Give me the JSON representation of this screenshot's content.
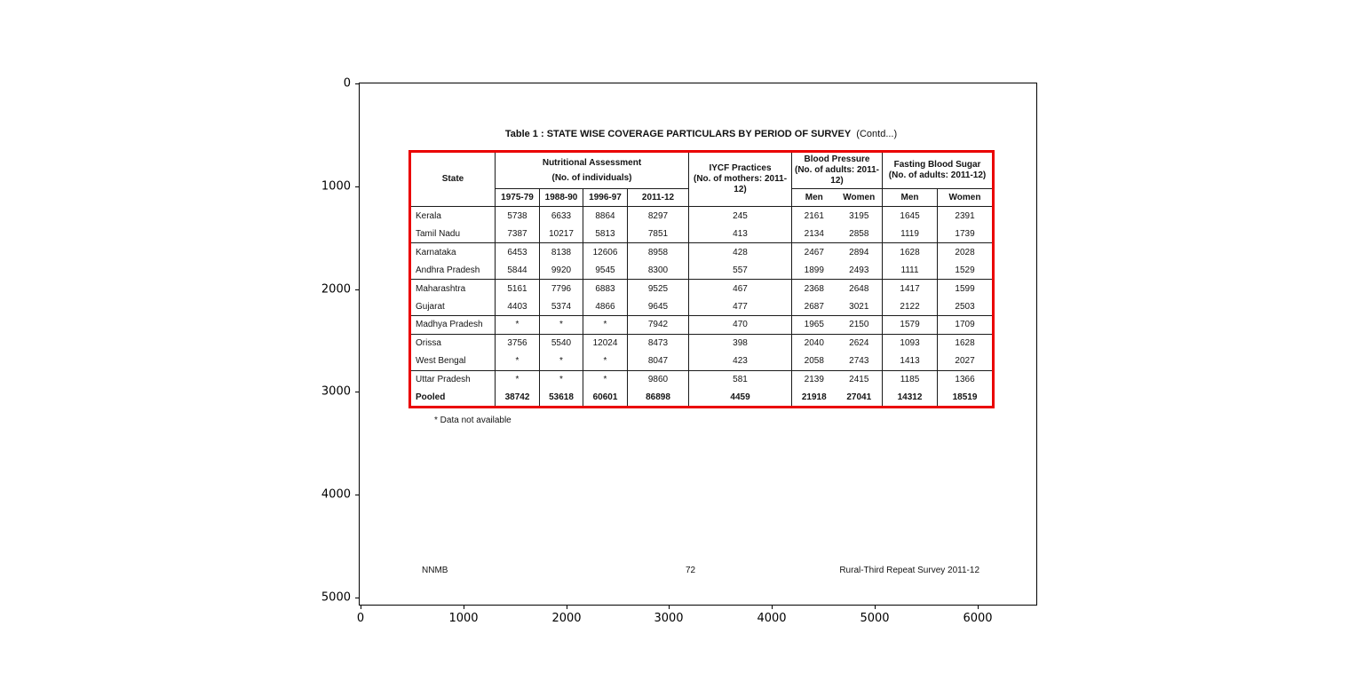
{
  "figure": {
    "y_ticks": [
      "0",
      "1000",
      "2000",
      "3000",
      "4000",
      "5000"
    ],
    "x_ticks": [
      "0",
      "1000",
      "2000",
      "3000",
      "4000",
      "5000",
      "6000"
    ]
  },
  "document": {
    "title_bold": "Table 1 : STATE WISE COVERAGE PARTICULARS BY PERIOD OF SURVEY",
    "title_suffix": "(Contd...)",
    "footnote": "* Data not available",
    "footer_left": "NNMB",
    "footer_center": "72",
    "footer_right": "Rural-Third Repeat Survey 2011-12",
    "table_border_color": "#ea0000"
  },
  "table": {
    "header_groups": {
      "state": "State",
      "nutritional": {
        "label": "Nutritional Assessment",
        "sub": "(No. of individuals)"
      },
      "iycf": {
        "label": "IYCF Practices",
        "sub": "(No. of mothers: 2011-12)"
      },
      "blood_pressure": {
        "label": "Blood Pressure",
        "sub": "(No. of adults: 2011-12)"
      },
      "fasting_blood_sugar": {
        "label": "Fasting  Blood Sugar",
        "sub": "(No. of adults: 2011-12)"
      }
    },
    "sub_headers": [
      "1975-79",
      "1988-90",
      "1996-97",
      "2011-12",
      "Men",
      "Women",
      "Men",
      "Women"
    ],
    "rows": [
      {
        "state": "Kerala",
        "values": [
          "5738",
          "6633",
          "8864",
          "8297",
          "245",
          "2161",
          "3195",
          "1645",
          "2391"
        ],
        "group_end": false,
        "bold": false
      },
      {
        "state": "Tamil Nadu",
        "values": [
          "7387",
          "10217",
          "5813",
          "7851",
          "413",
          "2134",
          "2858",
          "1119",
          "1739"
        ],
        "group_end": true,
        "bold": false
      },
      {
        "state": "Karnataka",
        "values": [
          "6453",
          "8138",
          "12606",
          "8958",
          "428",
          "2467",
          "2894",
          "1628",
          "2028"
        ],
        "group_end": false,
        "bold": false
      },
      {
        "state": "Andhra Pradesh",
        "values": [
          "5844",
          "9920",
          "9545",
          "8300",
          "557",
          "1899",
          "2493",
          "1111",
          "1529"
        ],
        "group_end": true,
        "bold": false
      },
      {
        "state": "Maharashtra",
        "values": [
          "5161",
          "7796",
          "6883",
          "9525",
          "467",
          "2368",
          "2648",
          "1417",
          "1599"
        ],
        "group_end": false,
        "bold": false
      },
      {
        "state": "Gujarat",
        "values": [
          "4403",
          "5374",
          "4866",
          "9645",
          "477",
          "2687",
          "3021",
          "2122",
          "2503"
        ],
        "group_end": true,
        "bold": false
      },
      {
        "state": "Madhya Pradesh",
        "values": [
          "*",
          "*",
          "*",
          "7942",
          "470",
          "1965",
          "2150",
          "1579",
          "1709"
        ],
        "group_end": true,
        "bold": false
      },
      {
        "state": "Orissa",
        "values": [
          "3756",
          "5540",
          "12024",
          "8473",
          "398",
          "2040",
          "2624",
          "1093",
          "1628"
        ],
        "group_end": false,
        "bold": false
      },
      {
        "state": "West Bengal",
        "values": [
          "*",
          "*",
          "*",
          "8047",
          "423",
          "2058",
          "2743",
          "1413",
          "2027"
        ],
        "group_end": true,
        "bold": false
      },
      {
        "state": "Uttar Pradesh",
        "values": [
          "*",
          "*",
          "*",
          "9860",
          "581",
          "2139",
          "2415",
          "1185",
          "1366"
        ],
        "group_end": false,
        "bold": false
      },
      {
        "state": "Pooled",
        "values": [
          "38742",
          "53618",
          "60601",
          "86898",
          "4459",
          "21918",
          "27041",
          "14312",
          "18519"
        ],
        "group_end": true,
        "bold": true
      }
    ]
  }
}
